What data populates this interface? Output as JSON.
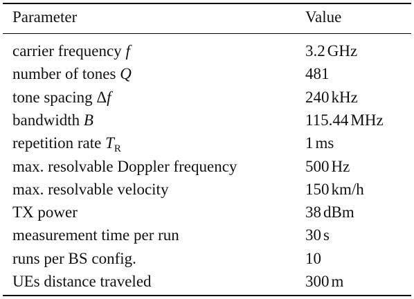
{
  "header": {
    "parameter": "Parameter",
    "value": "Value"
  },
  "rows": [
    {
      "label": "carrier frequency ",
      "symbol": "f",
      "symbol_sub": "",
      "value_num": "3.2",
      "value_unit": "GHz"
    },
    {
      "label": "number of tones ",
      "symbol": "Q",
      "symbol_sub": "",
      "value_num": "481",
      "value_unit": ""
    },
    {
      "label": "tone spacing Δ",
      "symbol": "f",
      "symbol_sub": "",
      "value_num": "240",
      "value_unit": "kHz"
    },
    {
      "label": "bandwidth ",
      "symbol": "B",
      "symbol_sub": "",
      "value_num": "115.44",
      "value_unit": "MHz"
    },
    {
      "label": "repetition rate ",
      "symbol": "T",
      "symbol_sub": "R",
      "value_num": "1",
      "value_unit": "ms"
    },
    {
      "label": "max. resolvable Doppler frequency",
      "symbol": "",
      "symbol_sub": "",
      "value_num": "500",
      "value_unit": "Hz"
    },
    {
      "label": "max. resolvable velocity",
      "symbol": "",
      "symbol_sub": "",
      "value_num": "150",
      "value_unit": "km/h"
    },
    {
      "label": "TX power",
      "symbol": "",
      "symbol_sub": "",
      "value_num": "38",
      "value_unit": "dBm"
    },
    {
      "label": "measurement time per run",
      "symbol": "",
      "symbol_sub": "",
      "value_num": "30",
      "value_unit": "s"
    },
    {
      "label": "runs per BS config.",
      "symbol": "",
      "symbol_sub": "",
      "value_num": "10",
      "value_unit": ""
    },
    {
      "label": "UEs distance traveled",
      "symbol": "",
      "symbol_sub": "",
      "value_num": "300",
      "value_unit": "m"
    }
  ]
}
